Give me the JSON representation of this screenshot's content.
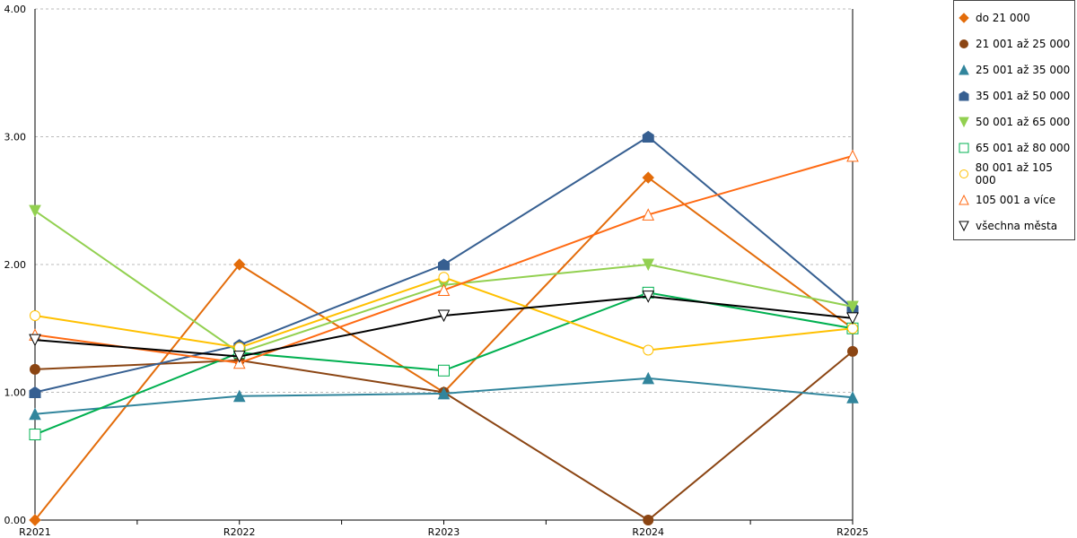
{
  "chart_data": {
    "type": "line",
    "title": "",
    "xlabel": "",
    "ylabel": "",
    "categories": [
      "R2021",
      "R2022",
      "R2023",
      "R2024",
      "R2025"
    ],
    "ylim": [
      0,
      4
    ],
    "yticks": [
      "0.00",
      "1.00",
      "2.00",
      "3.00",
      "4.00"
    ],
    "grid": true,
    "legend_position": "right",
    "series": [
      {
        "name": "do 21 000",
        "color": "#e36c0a",
        "marker": "diamond",
        "values": [
          0.0,
          2.0,
          1.0,
          2.68,
          1.5
        ]
      },
      {
        "name": "21 001 až 25 000",
        "color": "#8b4513",
        "marker": "circle",
        "values": [
          1.18,
          1.25,
          1.0,
          0.0,
          1.32
        ]
      },
      {
        "name": "25 001 až 35 000",
        "color": "#31859c",
        "marker": "triangle",
        "values": [
          0.83,
          0.97,
          0.99,
          1.11,
          0.96
        ]
      },
      {
        "name": "35 001 až 50 000",
        "color": "#365f91",
        "marker": "pentagon",
        "values": [
          1.0,
          1.37,
          2.0,
          3.0,
          1.66
        ]
      },
      {
        "name": "50 001 až 65 000",
        "color": "#92d050",
        "marker": "triangle-down",
        "values": [
          2.42,
          1.31,
          1.84,
          2.0,
          1.67
        ]
      },
      {
        "name": "65 001 až 80 000",
        "color": "#00b050",
        "marker": "square-open",
        "values": [
          0.67,
          1.31,
          1.17,
          1.78,
          1.5
        ]
      },
      {
        "name": "80 001 až 105 000",
        "color": "#ffc000",
        "marker": "circle-open",
        "values": [
          1.6,
          1.35,
          1.9,
          1.33,
          1.5
        ]
      },
      {
        "name": "105 001 a více",
        "color": "#ff6a13",
        "marker": "triangle-open",
        "values": [
          1.45,
          1.23,
          1.8,
          2.39,
          2.85
        ]
      },
      {
        "name": "všechna města",
        "color": "#000000",
        "marker": "triangle-down-open",
        "values": [
          1.41,
          1.28,
          1.6,
          1.75,
          1.58
        ]
      }
    ]
  }
}
